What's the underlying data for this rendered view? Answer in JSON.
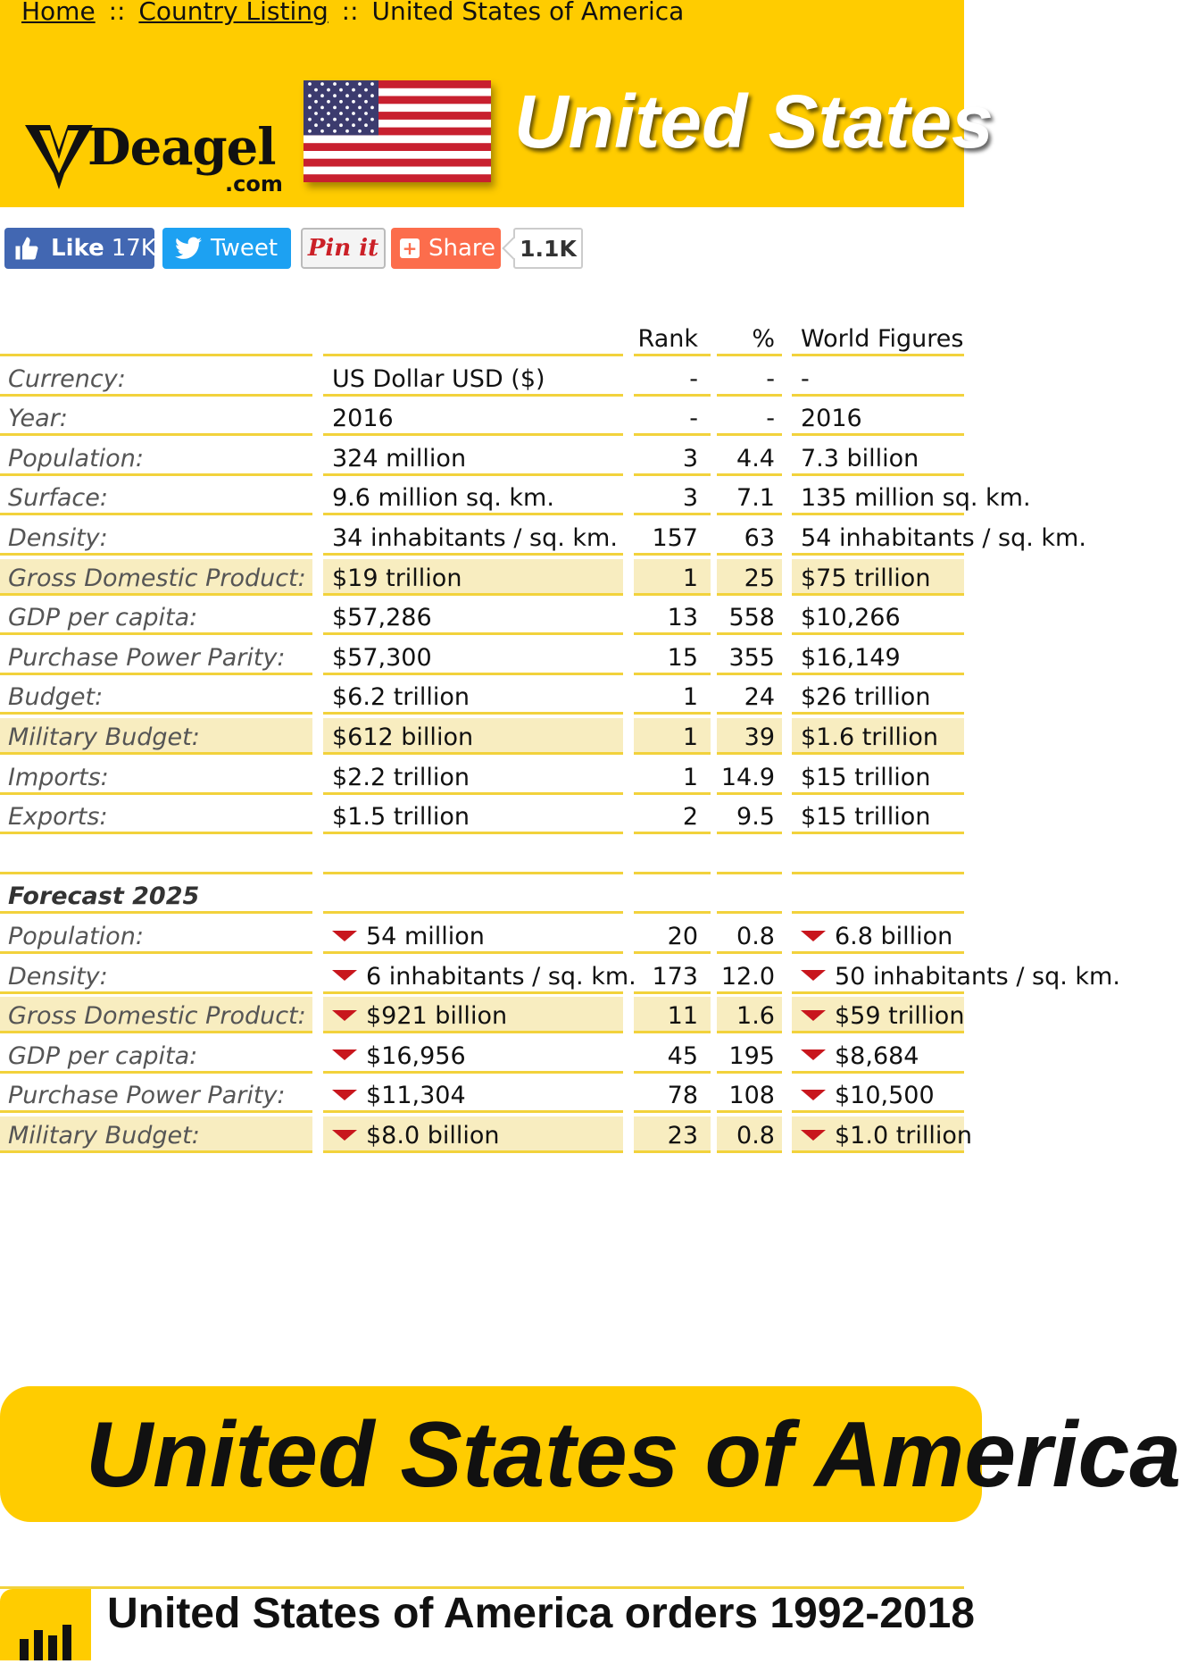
{
  "breadcrumb": {
    "home": "Home",
    "sep": "::",
    "listing": "Country Listing",
    "current": "United States of America"
  },
  "header": {
    "logo_word": "Deagel",
    "logo_suffix": ".com",
    "title": "United States"
  },
  "social": {
    "like_label": "Like",
    "like_count": "17K",
    "tweet_label": "Tweet",
    "pin_label": "Pin it",
    "share_label": "Share",
    "share_count": "1.1K"
  },
  "table": {
    "headers": {
      "label": "",
      "value": "",
      "rank": "Rank",
      "pct": "%",
      "world": "World Figures"
    },
    "rows": [
      {
        "label": "Currency:",
        "value": "US Dollar USD ($)",
        "rank": "-",
        "pct": "-",
        "world": "-",
        "hl": false
      },
      {
        "label": "Year:",
        "value": "2016",
        "rank": "-",
        "pct": "-",
        "world": "2016",
        "hl": false
      },
      {
        "label": "Population:",
        "value": "324 million",
        "rank": "3",
        "pct": "4.4",
        "world": "7.3 billion",
        "hl": false
      },
      {
        "label": "Surface:",
        "value": "9.6 million sq. km.",
        "rank": "3",
        "pct": "7.1",
        "world": "135 million sq. km.",
        "hl": false
      },
      {
        "label": "Density:",
        "value": "34 inhabitants / sq. km.",
        "rank": "157",
        "pct": "63",
        "world": "54 inhabitants / sq. km.",
        "hl": false
      },
      {
        "label": "Gross Domestic Product:",
        "value": "$19 trillion",
        "rank": "1",
        "pct": "25",
        "world": "$75 trillion",
        "hl": true
      },
      {
        "label": "GDP per capita:",
        "value": "$57,286",
        "rank": "13",
        "pct": "558",
        "world": "$10,266",
        "hl": false
      },
      {
        "label": "Purchase Power Parity:",
        "value": "$57,300",
        "rank": "15",
        "pct": "355",
        "world": "$16,149",
        "hl": false
      },
      {
        "label": "Budget:",
        "value": "$6.2 trillion",
        "rank": "1",
        "pct": "24",
        "world": "$26 trillion",
        "hl": false
      },
      {
        "label": "Military Budget:",
        "value": "$612 billion",
        "rank": "1",
        "pct": "39",
        "world": "$1.6 trillion",
        "hl": true
      },
      {
        "label": "Imports:",
        "value": "$2.2 trillion",
        "rank": "1",
        "pct": "14.9",
        "world": "$15 trillion",
        "hl": false
      },
      {
        "label": "Exports:",
        "value": "$1.5 trillion",
        "rank": "2",
        "pct": "9.5",
        "world": "$15 trillion",
        "hl": false
      }
    ],
    "forecast_title": "Forecast 2025",
    "forecast_rows": [
      {
        "label": "Population:",
        "value": "54 million",
        "rank": "20",
        "pct": "0.8",
        "world": "6.8 billion",
        "hl": false
      },
      {
        "label": "Density:",
        "value": "6 inhabitants / sq. km.",
        "rank": "173",
        "pct": "12.0",
        "world": "50 inhabitants / sq. km.",
        "hl": false
      },
      {
        "label": "Gross Domestic Product:",
        "value": "$921 billion",
        "rank": "11",
        "pct": "1.6",
        "world": "$59 trillion",
        "hl": true
      },
      {
        "label": "GDP per capita:",
        "value": "$16,956",
        "rank": "45",
        "pct": "195",
        "world": "$8,684",
        "hl": false
      },
      {
        "label": "Purchase Power Parity:",
        "value": "$11,304",
        "rank": "78",
        "pct": "108",
        "world": "$10,500",
        "hl": false
      },
      {
        "label": "Military Budget:",
        "value": "$8.0 billion",
        "rank": "23",
        "pct": "0.8",
        "world": "$1.0 trillion",
        "hl": true
      }
    ]
  },
  "banner": {
    "title": "United States of America"
  },
  "orders": {
    "title": "United States of America orders 1992-2018"
  },
  "colors": {
    "brand_yellow": "#ffcc00",
    "row_highlight": "#f8edc0",
    "row_border": "#f2d23c",
    "down_arrow": "#c8161d"
  }
}
